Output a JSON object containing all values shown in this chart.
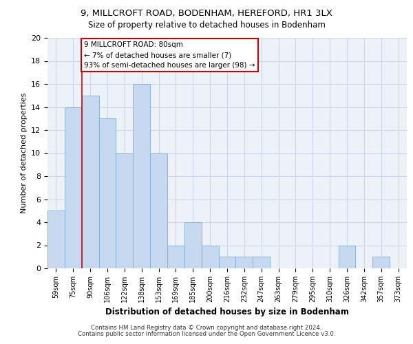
{
  "title": "9, MILLCROFT ROAD, BODENHAM, HEREFORD, HR1 3LX",
  "subtitle": "Size of property relative to detached houses in Bodenham",
  "xlabel": "Distribution of detached houses by size in Bodenham",
  "ylabel": "Number of detached properties",
  "categories": [
    "59sqm",
    "75sqm",
    "90sqm",
    "106sqm",
    "122sqm",
    "138sqm",
    "153sqm",
    "169sqm",
    "185sqm",
    "200sqm",
    "216sqm",
    "232sqm",
    "247sqm",
    "263sqm",
    "279sqm",
    "295sqm",
    "310sqm",
    "326sqm",
    "342sqm",
    "357sqm",
    "373sqm"
  ],
  "values": [
    5,
    14,
    15,
    13,
    10,
    16,
    10,
    2,
    4,
    2,
    1,
    1,
    1,
    0,
    0,
    0,
    0,
    2,
    0,
    1,
    0
  ],
  "bar_color": "#c6d9f0",
  "bar_edge_color": "#7bafd4",
  "annotation_line_color": "#cc0000",
  "annotation_box_edge_color": "#cc0000",
  "annotation_box_text_line1": "9 MILLCROFT ROAD: 80sqm",
  "annotation_box_text_line2": "← 7% of detached houses are smaller (7)",
  "annotation_box_text_line3": "93% of semi-detached houses are larger (98) →",
  "grid_color": "#c8d8e8",
  "background_color": "#edf2f8",
  "ylim": [
    0,
    20
  ],
  "yticks": [
    0,
    2,
    4,
    6,
    8,
    10,
    12,
    14,
    16,
    18,
    20
  ],
  "footer_line1": "Contains HM Land Registry data © Crown copyright and database right 2024.",
  "footer_line2": "Contains public sector information licensed under the Open Government Licence v3.0."
}
